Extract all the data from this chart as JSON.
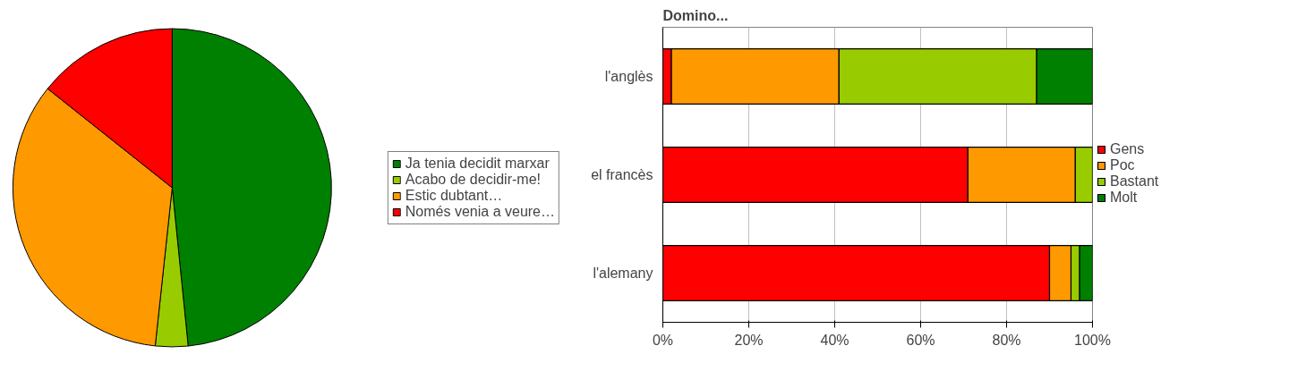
{
  "chart_data": [
    {
      "type": "pie",
      "categories": [
        "Ja tenia decidit marxar",
        "Acabo de decidir-me!",
        "Estic dubtant…",
        "Només venia a veure…"
      ],
      "values": [
        48.4,
        3.3,
        34.0,
        14.3
      ],
      "colors": [
        "#008000",
        "#99cc00",
        "#ff9900",
        "#ff0000"
      ],
      "legend": "right"
    },
    {
      "type": "bar",
      "title": "Domino...",
      "orientation": "horizontal",
      "stacked": true,
      "categories": [
        "l'anglès",
        "el francès",
        "l'alemany"
      ],
      "series": [
        {
          "name": "Gens",
          "color": "#ff0000",
          "values": [
            2,
            71,
            90
          ]
        },
        {
          "name": "Poc",
          "color": "#ff9900",
          "values": [
            39,
            25,
            5
          ]
        },
        {
          "name": "Bastant",
          "color": "#99cc00",
          "values": [
            46,
            4,
            2
          ]
        },
        {
          "name": "Molt",
          "color": "#008000",
          "values": [
            13,
            0,
            3
          ]
        }
      ],
      "xlim": [
        0,
        100
      ],
      "xticks": [
        {
          "value": 0,
          "label": "0%"
        },
        {
          "value": 20,
          "label": "20%"
        },
        {
          "value": 40,
          "label": "40%"
        },
        {
          "value": 60,
          "label": "60%"
        },
        {
          "value": 80,
          "label": "80%"
        },
        {
          "value": 100,
          "label": "100%"
        }
      ],
      "grid": "x",
      "legend": "right"
    }
  ]
}
